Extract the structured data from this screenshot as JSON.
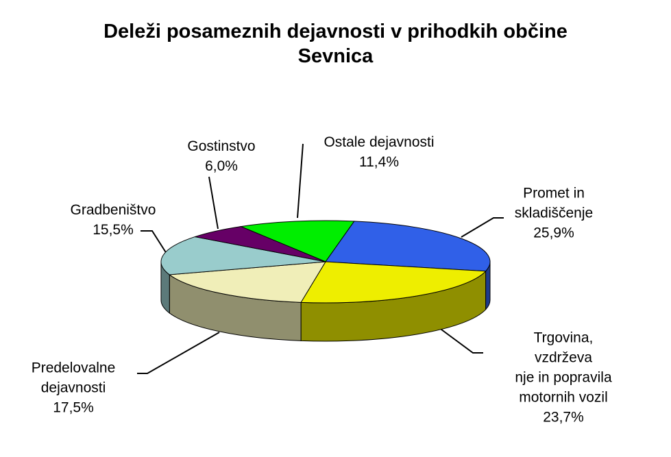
{
  "chart_data": {
    "type": "pie3d",
    "title": "Deleži posameznih dejavnosti v prihodkih občine\nSevnica",
    "categories": [
      "Ostale dejavnosti",
      "Promet in\nskladiščenje",
      "Trgovina, vzdrževa\nnje in popravila\nmotornih vozil",
      "Predelovalne\ndejavnosti",
      "Gradbeništvo",
      "Gostinstvo"
    ],
    "values": [
      11.4,
      25.9,
      23.7,
      17.5,
      15.5,
      6.0
    ],
    "value_labels": [
      "11,4%",
      "25,9%",
      "23,7%",
      "17,5%",
      "15,5%",
      "6,0%"
    ],
    "colors": [
      "#00ee00",
      "#3060e8",
      "#eeee00",
      "#f0eeb8",
      "#99cccc",
      "#660066"
    ]
  }
}
